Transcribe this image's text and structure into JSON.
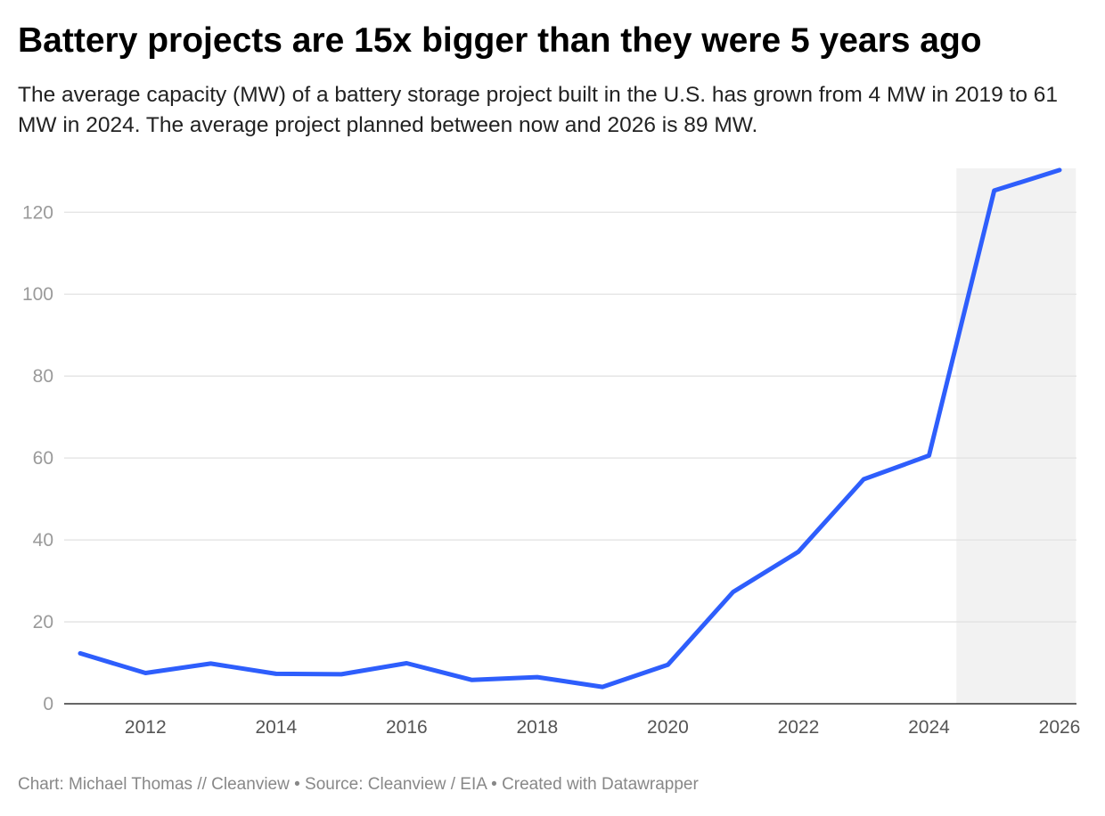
{
  "chart_data": {
    "type": "line",
    "title": "Battery projects are 15x bigger than they were 5 years ago",
    "subtitle": "The average capacity (MW) of a battery storage project built in the U.S. has grown from 4 MW in 2019 to 61 MW in 2024. The average project planned between now and 2026 is 89 MW.",
    "xlabel": "",
    "ylabel": "",
    "x": [
      2011,
      2012,
      2013,
      2014,
      2015,
      2016,
      2017,
      2018,
      2019,
      2020,
      2021,
      2022,
      2023,
      2024,
      2025,
      2026
    ],
    "series": [
      {
        "values": [
          12.3,
          7.5,
          9.8,
          7.3,
          7.2,
          9.9,
          5.8,
          6.5,
          4.1,
          9.5,
          27.3,
          37.1,
          54.8,
          60.6,
          125.3,
          130.3
        ]
      }
    ],
    "xlim": [
      2011,
      2026
    ],
    "ylim": [
      0,
      130.5
    ],
    "yticks": [
      0,
      20,
      40,
      60,
      80,
      100,
      120
    ],
    "xticks": [
      2012,
      2014,
      2016,
      2018,
      2020,
      2022,
      2024,
      2026
    ],
    "highlight_range": [
      2024.42,
      2026.25
    ],
    "grid": true,
    "colors": {
      "line": "#2e5efc",
      "grid": "#e2e2e2",
      "axis": "#333333",
      "highlight": "#f2f2f2"
    }
  },
  "footer": "Chart: Michael Thomas // Cleanview • Source: Cleanview / EIA • Created with Datawrapper"
}
